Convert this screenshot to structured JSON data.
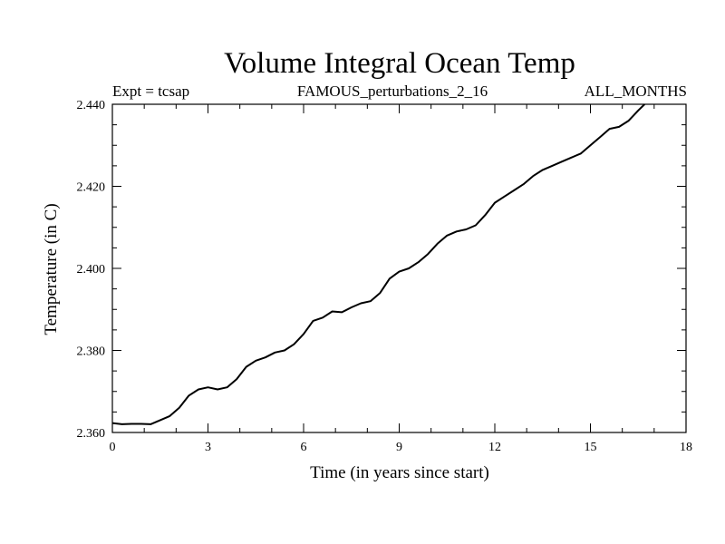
{
  "chart_data": {
    "type": "line",
    "title": "Volume Integral Ocean Temp",
    "annotations": {
      "left": "Expt = tcsap",
      "center": "FAMOUS_perturbations_2_16",
      "right": "ALL_MONTHS"
    },
    "xlabel": "Time (in years since start)",
    "ylabel": "Temperature (in C)",
    "xlim": [
      0,
      18
    ],
    "ylim": [
      2.36,
      2.44
    ],
    "xticks": [
      "0",
      "3",
      "6",
      "9",
      "12",
      "15",
      "18"
    ],
    "yticks": [
      "2.360",
      "2.380",
      "2.400",
      "2.420",
      "2.440"
    ],
    "grid": false,
    "series": [
      {
        "color": "#000000",
        "x": [
          0,
          0.3,
          0.6,
          0.9,
          1.2,
          1.5,
          1.8,
          2.1,
          2.4,
          2.7,
          3.0,
          3.3,
          3.6,
          3.9,
          4.2,
          4.5,
          4.8,
          5.1,
          5.4,
          5.7,
          6.0,
          6.3,
          6.6,
          6.9,
          7.2,
          7.5,
          7.8,
          8.1,
          8.4,
          8.7,
          9.0,
          9.3,
          9.6,
          9.9,
          10.2,
          10.5,
          10.8,
          11.1,
          11.4,
          11.7,
          12.0,
          12.3,
          12.6,
          12.9,
          13.2,
          13.5,
          13.8,
          14.1,
          14.4,
          14.7,
          15.0,
          15.3,
          15.6,
          15.9,
          16.2,
          16.5,
          16.7
        ],
        "y": [
          2.3623,
          2.362,
          2.3621,
          2.3621,
          2.362,
          2.363,
          2.364,
          2.366,
          2.369,
          2.3705,
          2.371,
          2.3705,
          2.371,
          2.373,
          2.376,
          2.3775,
          2.3783,
          2.3795,
          2.38,
          2.3815,
          2.384,
          2.3872,
          2.388,
          2.3895,
          2.3893,
          2.3905,
          2.3915,
          2.392,
          2.394,
          2.3975,
          2.3992,
          2.4,
          2.4015,
          2.4035,
          2.406,
          2.408,
          2.409,
          2.4095,
          2.4105,
          2.413,
          2.416,
          2.4175,
          2.419,
          2.4205,
          2.4225,
          2.424,
          2.425,
          2.426,
          2.427,
          2.428,
          2.43,
          2.432,
          2.434,
          2.4345,
          2.436,
          2.4385,
          2.44
        ]
      }
    ]
  }
}
